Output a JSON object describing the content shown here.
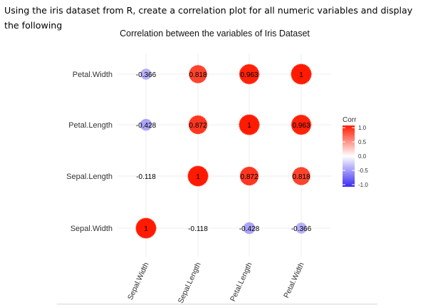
{
  "prompt": {
    "text": "Using the iris dataset from R, create a correlation plot for all numeric variables and display the following"
  },
  "chart_data": {
    "type": "correlation",
    "title": "Correlation between the variables of Iris Dataset",
    "x_labels": [
      "Sepal.Width",
      "Sepal.Length",
      "Petal.Length",
      "Petal.Width"
    ],
    "y_labels": [
      "Sepal.Width",
      "Sepal.Length",
      "Petal.Length",
      "Petal.Width"
    ],
    "cells": [
      {
        "x": "Sepal.Width",
        "y": "Sepal.Width",
        "value": 1,
        "label": "1",
        "marker": true
      },
      {
        "x": "Sepal.Length",
        "y": "Sepal.Width",
        "value": -0.118,
        "label": "-0.118",
        "marker": false
      },
      {
        "x": "Petal.Length",
        "y": "Sepal.Width",
        "value": -0.428,
        "label": "-0.428",
        "marker": true
      },
      {
        "x": "Petal.Width",
        "y": "Sepal.Width",
        "value": -0.366,
        "label": "-0.366",
        "marker": true
      },
      {
        "x": "Sepal.Width",
        "y": "Sepal.Length",
        "value": -0.118,
        "label": "-0.118",
        "marker": false
      },
      {
        "x": "Sepal.Length",
        "y": "Sepal.Length",
        "value": 1,
        "label": "1",
        "marker": true
      },
      {
        "x": "Petal.Length",
        "y": "Sepal.Length",
        "value": 0.872,
        "label": "0.872",
        "marker": true
      },
      {
        "x": "Petal.Width",
        "y": "Sepal.Length",
        "value": 0.818,
        "label": "0.818",
        "marker": true
      },
      {
        "x": "Sepal.Width",
        "y": "Petal.Length",
        "value": -0.428,
        "label": "-0.428",
        "marker": true
      },
      {
        "x": "Sepal.Length",
        "y": "Petal.Length",
        "value": 0.872,
        "label": "0.872",
        "marker": true
      },
      {
        "x": "Petal.Length",
        "y": "Petal.Length",
        "value": 1,
        "label": "1",
        "marker": true
      },
      {
        "x": "Petal.Width",
        "y": "Petal.Length",
        "value": 0.963,
        "label": "0.963",
        "marker": true
      },
      {
        "x": "Sepal.Width",
        "y": "Petal.Width",
        "value": -0.366,
        "label": "-0.366",
        "marker": true
      },
      {
        "x": "Sepal.Length",
        "y": "Petal.Width",
        "value": 0.818,
        "label": "0.818",
        "marker": true
      },
      {
        "x": "Petal.Length",
        "y": "Petal.Width",
        "value": 0.963,
        "label": "0.963",
        "marker": true
      },
      {
        "x": "Petal.Width",
        "y": "Petal.Width",
        "value": 1,
        "label": "1",
        "marker": true
      }
    ],
    "legend": {
      "title": "Corr",
      "ticks": [
        "1.0",
        "0.5",
        "0.0",
        "-0.5",
        "-1.0"
      ],
      "range": [
        -1,
        1
      ],
      "colors": {
        "low": "#3b2bf0",
        "mid": "#ffffff",
        "high": "#ff1a00"
      }
    },
    "colors": {
      "grid": "#ececec",
      "label": "#333333"
    }
  }
}
